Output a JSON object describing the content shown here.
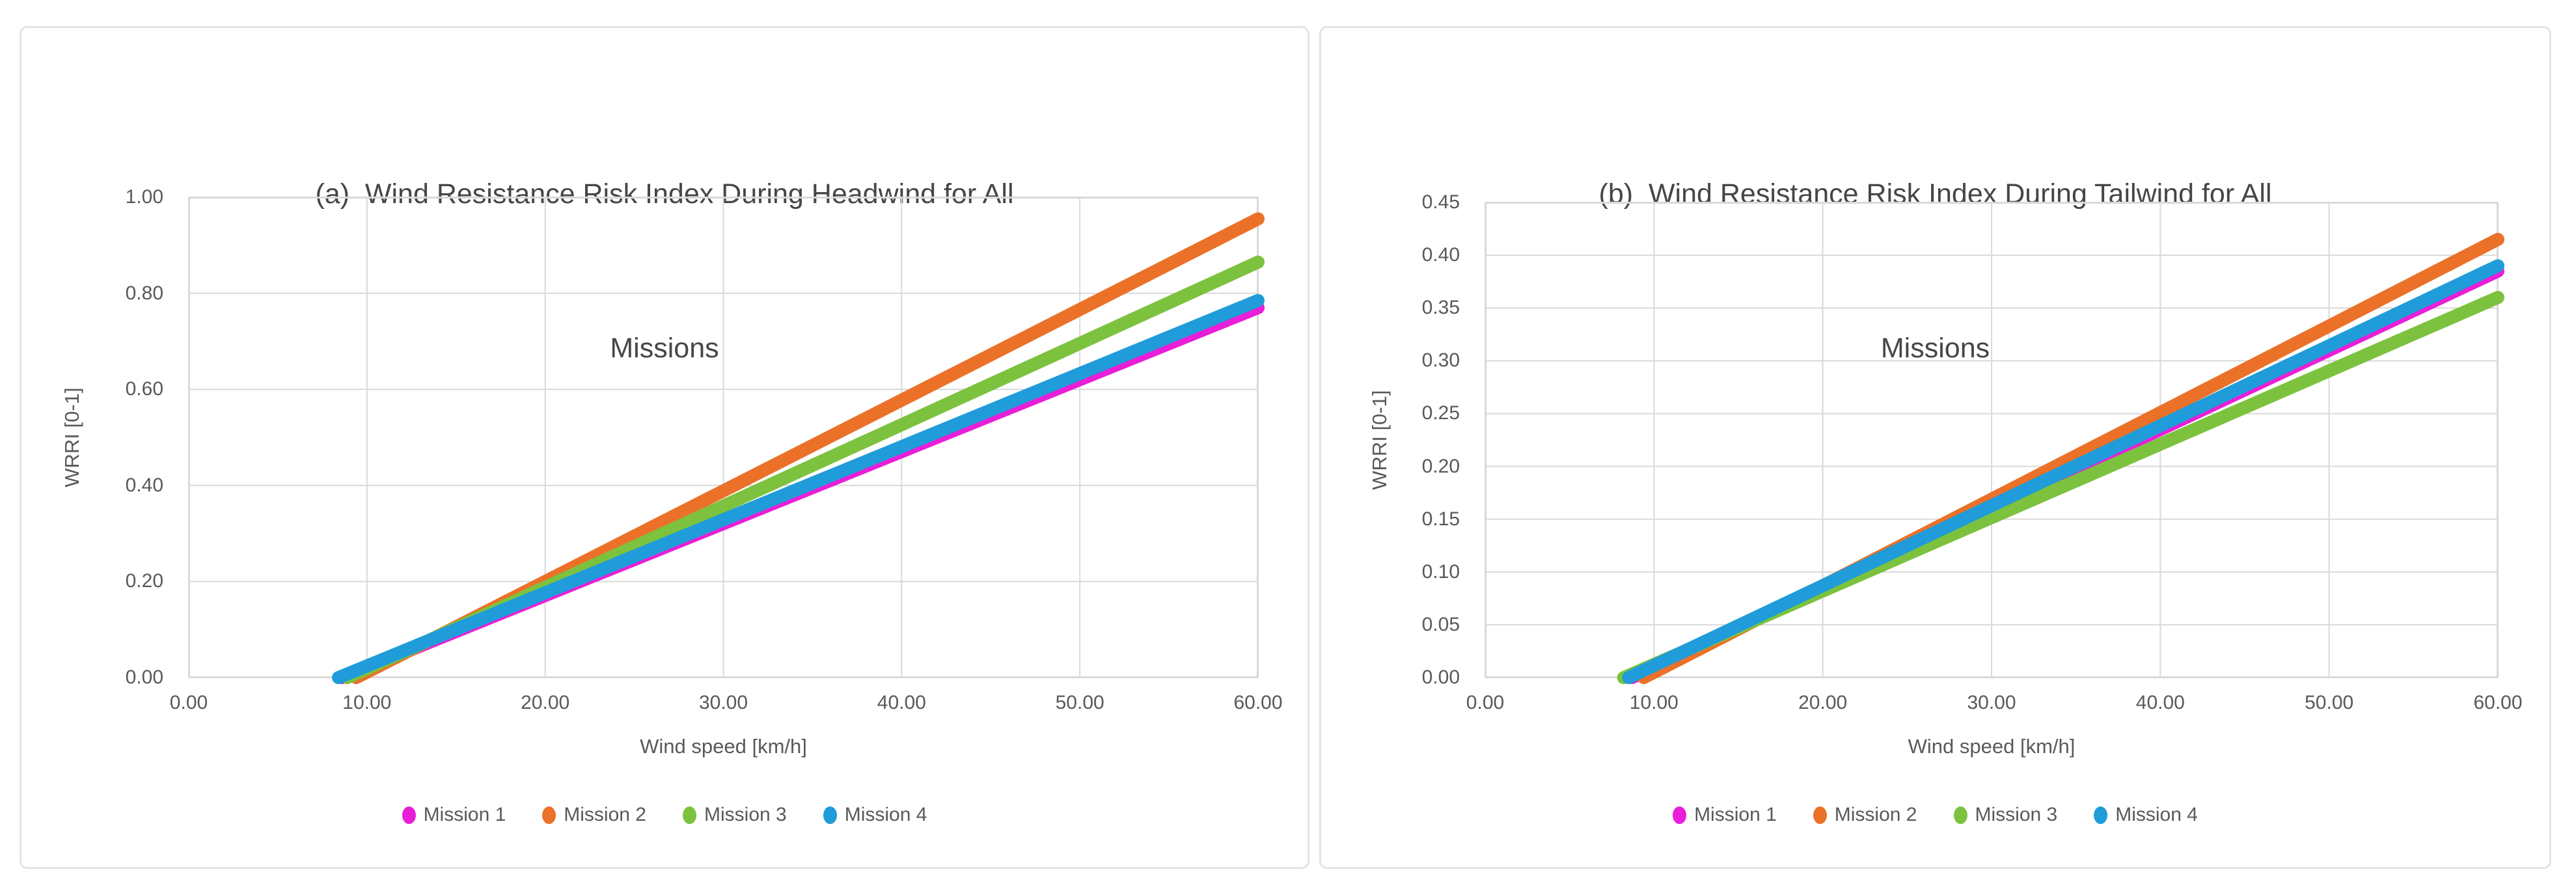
{
  "page": {
    "background": "#ffffff",
    "panel_border_color": "#e4e4e4",
    "grid_color": "#d9d9d9",
    "axis_text_color": "#595959",
    "title_text_color": "#464646"
  },
  "chart_data": [
    {
      "type": "line",
      "panel_id": "a",
      "title": "(a)  Wind Resistance Risk Index During Headwind for All Missions",
      "title_lines": [
        "(a)  Wind Resistance Risk Index During Headwind for All",
        "Missions"
      ],
      "xlabel": "Wind speed [km/h]",
      "ylabel": "WRRI [0-1]",
      "xlim": [
        0,
        60
      ],
      "ylim": [
        0,
        1.0
      ],
      "x_tick_labels": [
        "0.00",
        "10.00",
        "20.00",
        "30.00",
        "40.00",
        "50.00",
        "60.00"
      ],
      "y_tick_labels": [
        "0.00",
        "0.20",
        "0.40",
        "0.60",
        "0.80",
        "1.00"
      ],
      "grid": true,
      "legend_position": "bottom",
      "series": [
        {
          "name": "Mission 1",
          "color": "#E81ED8",
          "x": [
            8.6,
            60
          ],
          "y": [
            0,
            0.77
          ]
        },
        {
          "name": "Mission 2",
          "color": "#EB7128",
          "x": [
            9.4,
            60
          ],
          "y": [
            0,
            0.955
          ]
        },
        {
          "name": "Mission 3",
          "color": "#7CC23E",
          "x": [
            8.9,
            60
          ],
          "y": [
            0,
            0.865
          ]
        },
        {
          "name": "Mission 4",
          "color": "#1F9CD9",
          "x": [
            8.4,
            60
          ],
          "y": [
            0,
            0.785
          ]
        }
      ]
    },
    {
      "type": "line",
      "panel_id": "b",
      "title": "(b)  Wind Resistance Risk Index During Tailwind for All Missions",
      "title_lines": [
        "(b)  Wind Resistance Risk Index During Tailwind for All",
        "Missions"
      ],
      "xlabel": "Wind speed [km/h]",
      "ylabel": "WRRI [0-1]",
      "xlim": [
        0,
        60
      ],
      "ylim": [
        0,
        0.45
      ],
      "x_tick_labels": [
        "0.00",
        "10.00",
        "20.00",
        "30.00",
        "40.00",
        "50.00",
        "60.00"
      ],
      "y_tick_labels": [
        "0.00",
        "0.05",
        "0.10",
        "0.15",
        "0.20",
        "0.25",
        "0.30",
        "0.35",
        "0.40",
        "0.45"
      ],
      "grid": true,
      "legend_position": "bottom",
      "series": [
        {
          "name": "Mission 1",
          "color": "#E81ED8",
          "x": [
            8.7,
            60
          ],
          "y": [
            0,
            0.385
          ]
        },
        {
          "name": "Mission 2",
          "color": "#EB7128",
          "x": [
            9.4,
            60
          ],
          "y": [
            0,
            0.415
          ]
        },
        {
          "name": "Mission 3",
          "color": "#7CC23E",
          "x": [
            8.2,
            60
          ],
          "y": [
            0,
            0.36
          ]
        },
        {
          "name": "Mission 4",
          "color": "#1F9CD9",
          "x": [
            8.5,
            60
          ],
          "y": [
            0,
            0.39
          ]
        }
      ]
    }
  ]
}
